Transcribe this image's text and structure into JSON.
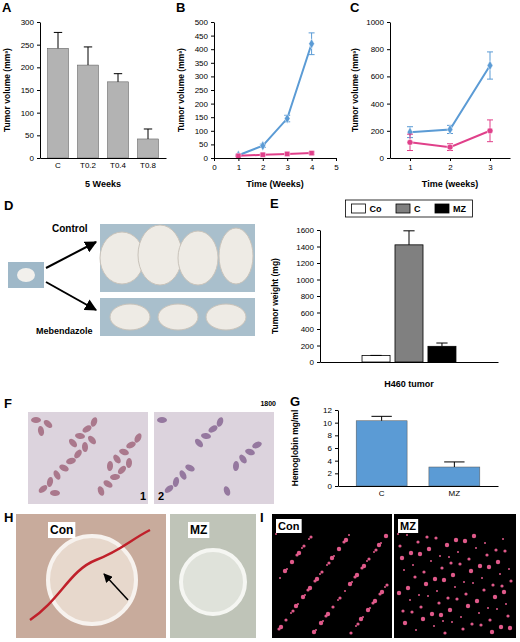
{
  "chart_data": [
    {
      "label": "A",
      "type": "bar",
      "categories": [
        "C",
        "T0.2",
        "T0.4",
        "T0.8"
      ],
      "values": [
        242,
        205,
        168,
        42
      ],
      "errors": [
        35,
        40,
        18,
        22
      ],
      "color": "#b3b3b3",
      "x_label": "5 Weeks",
      "y_label": "Tumor volume (mm³)",
      "ylim": [
        0,
        300
      ],
      "yticks": [
        0,
        50,
        100,
        150,
        200,
        250,
        300
      ]
    },
    {
      "label": "B",
      "type": "line",
      "x": [
        1,
        2,
        3,
        4
      ],
      "series": [
        {
          "color": "#5b9bd5",
          "values": [
            10,
            45,
            145,
            420
          ],
          "errors": [
            3,
            6,
            12,
            40
          ],
          "marker": "diamond"
        },
        {
          "color": "#e0408a",
          "values": [
            8,
            12,
            15,
            18
          ],
          "errors": [
            2,
            3,
            3,
            4
          ],
          "marker": "square"
        }
      ],
      "x_label": "Time (Weeks)",
      "y_label": "Tumor volume (mm³)",
      "xlim": [
        0,
        5
      ],
      "xticks": [
        0,
        1,
        2,
        3,
        4,
        5
      ],
      "ylim": [
        0,
        500
      ],
      "yticks": [
        0,
        50,
        100,
        150,
        200,
        250,
        300,
        350,
        400,
        450,
        500
      ]
    },
    {
      "label": "C",
      "type": "line",
      "x": [
        1,
        2,
        3
      ],
      "series": [
        {
          "color": "#5b9bd5",
          "values": [
            190,
            210,
            680
          ],
          "errors": [
            40,
            30,
            100
          ],
          "marker": "diamond"
        },
        {
          "color": "#e0408a",
          "values": [
            115,
            80,
            200
          ],
          "errors": [
            60,
            25,
            80
          ],
          "marker": "circle"
        }
      ],
      "x_label": "Time (weeks)",
      "y_label": "Tumor volume (mm³)",
      "xlim": [
        0.5,
        3.5
      ],
      "xticks": [
        1,
        2,
        3
      ],
      "ylim": [
        0,
        1000
      ],
      "yticks": [
        0,
        200,
        400,
        600,
        800,
        1000
      ]
    },
    {
      "label": "E",
      "type": "bar",
      "categories": [
        null
      ],
      "series": [
        {
          "name": "Co",
          "color": "#ffffff",
          "values": [
            80
          ],
          "errors": [
            0
          ]
        },
        {
          "name": "C",
          "color": "#808080",
          "values": [
            1420
          ],
          "errors": [
            170
          ]
        },
        {
          "name": "MZ",
          "color": "#000000",
          "values": [
            190
          ],
          "errors": [
            40
          ]
        }
      ],
      "legend": "top",
      "x_label": "H460 tumor",
      "y_label": "Tumor weight (mg)",
      "ylim": [
        0,
        1600
      ],
      "yticks": [
        0,
        200,
        400,
        600,
        800,
        1000,
        1200,
        1400,
        1600
      ]
    },
    {
      "label": "G",
      "type": "bar",
      "categories": [
        "C",
        "MZ"
      ],
      "values": [
        10.3,
        3.0
      ],
      "errors": [
        0.7,
        0.8
      ],
      "color": "#5b9bd5",
      "y_label": "Hemoglobin mg/ml",
      "ylim": [
        0,
        12
      ],
      "yticks": [
        0,
        2,
        4,
        6,
        8,
        10,
        12
      ]
    }
  ],
  "images": [
    {
      "label": "D",
      "texts": [
        "Control",
        "Mebendazole"
      ]
    },
    {
      "label": "F",
      "texts": [
        "1800",
        "1",
        "2"
      ]
    },
    {
      "label": "H",
      "texts": [
        "Con",
        "MZ"
      ]
    },
    {
      "label": "I",
      "texts": [
        "Con",
        "MZ"
      ]
    }
  ]
}
